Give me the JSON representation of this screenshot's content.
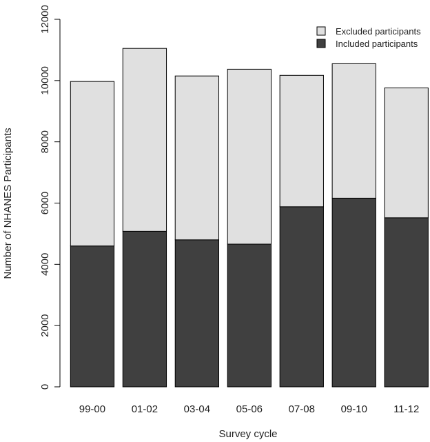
{
  "chart_data": {
    "type": "bar",
    "stacked": true,
    "categories": [
      "99-00",
      "01-02",
      "03-04",
      "05-06",
      "07-08",
      "09-10",
      "11-12"
    ],
    "series": [
      {
        "name": "Included participants",
        "color": "#404040",
        "values": [
          4600,
          5080,
          4800,
          4660,
          5880,
          6160,
          5520
        ]
      },
      {
        "name": "Excluded participants",
        "color": "#e0e0e0",
        "values": [
          5370,
          5970,
          5350,
          5710,
          4290,
          4390,
          4240
        ]
      }
    ],
    "xlabel": "Survey cycle",
    "ylabel": "Number of NHANES Participants",
    "ylim": [
      0,
      12000
    ],
    "yticks": [
      0,
      2000,
      4000,
      6000,
      8000,
      10000,
      12000
    ],
    "legend": {
      "position": "top-right",
      "entries": [
        "Excluded participants",
        "Included participants"
      ]
    },
    "grid": false
  }
}
